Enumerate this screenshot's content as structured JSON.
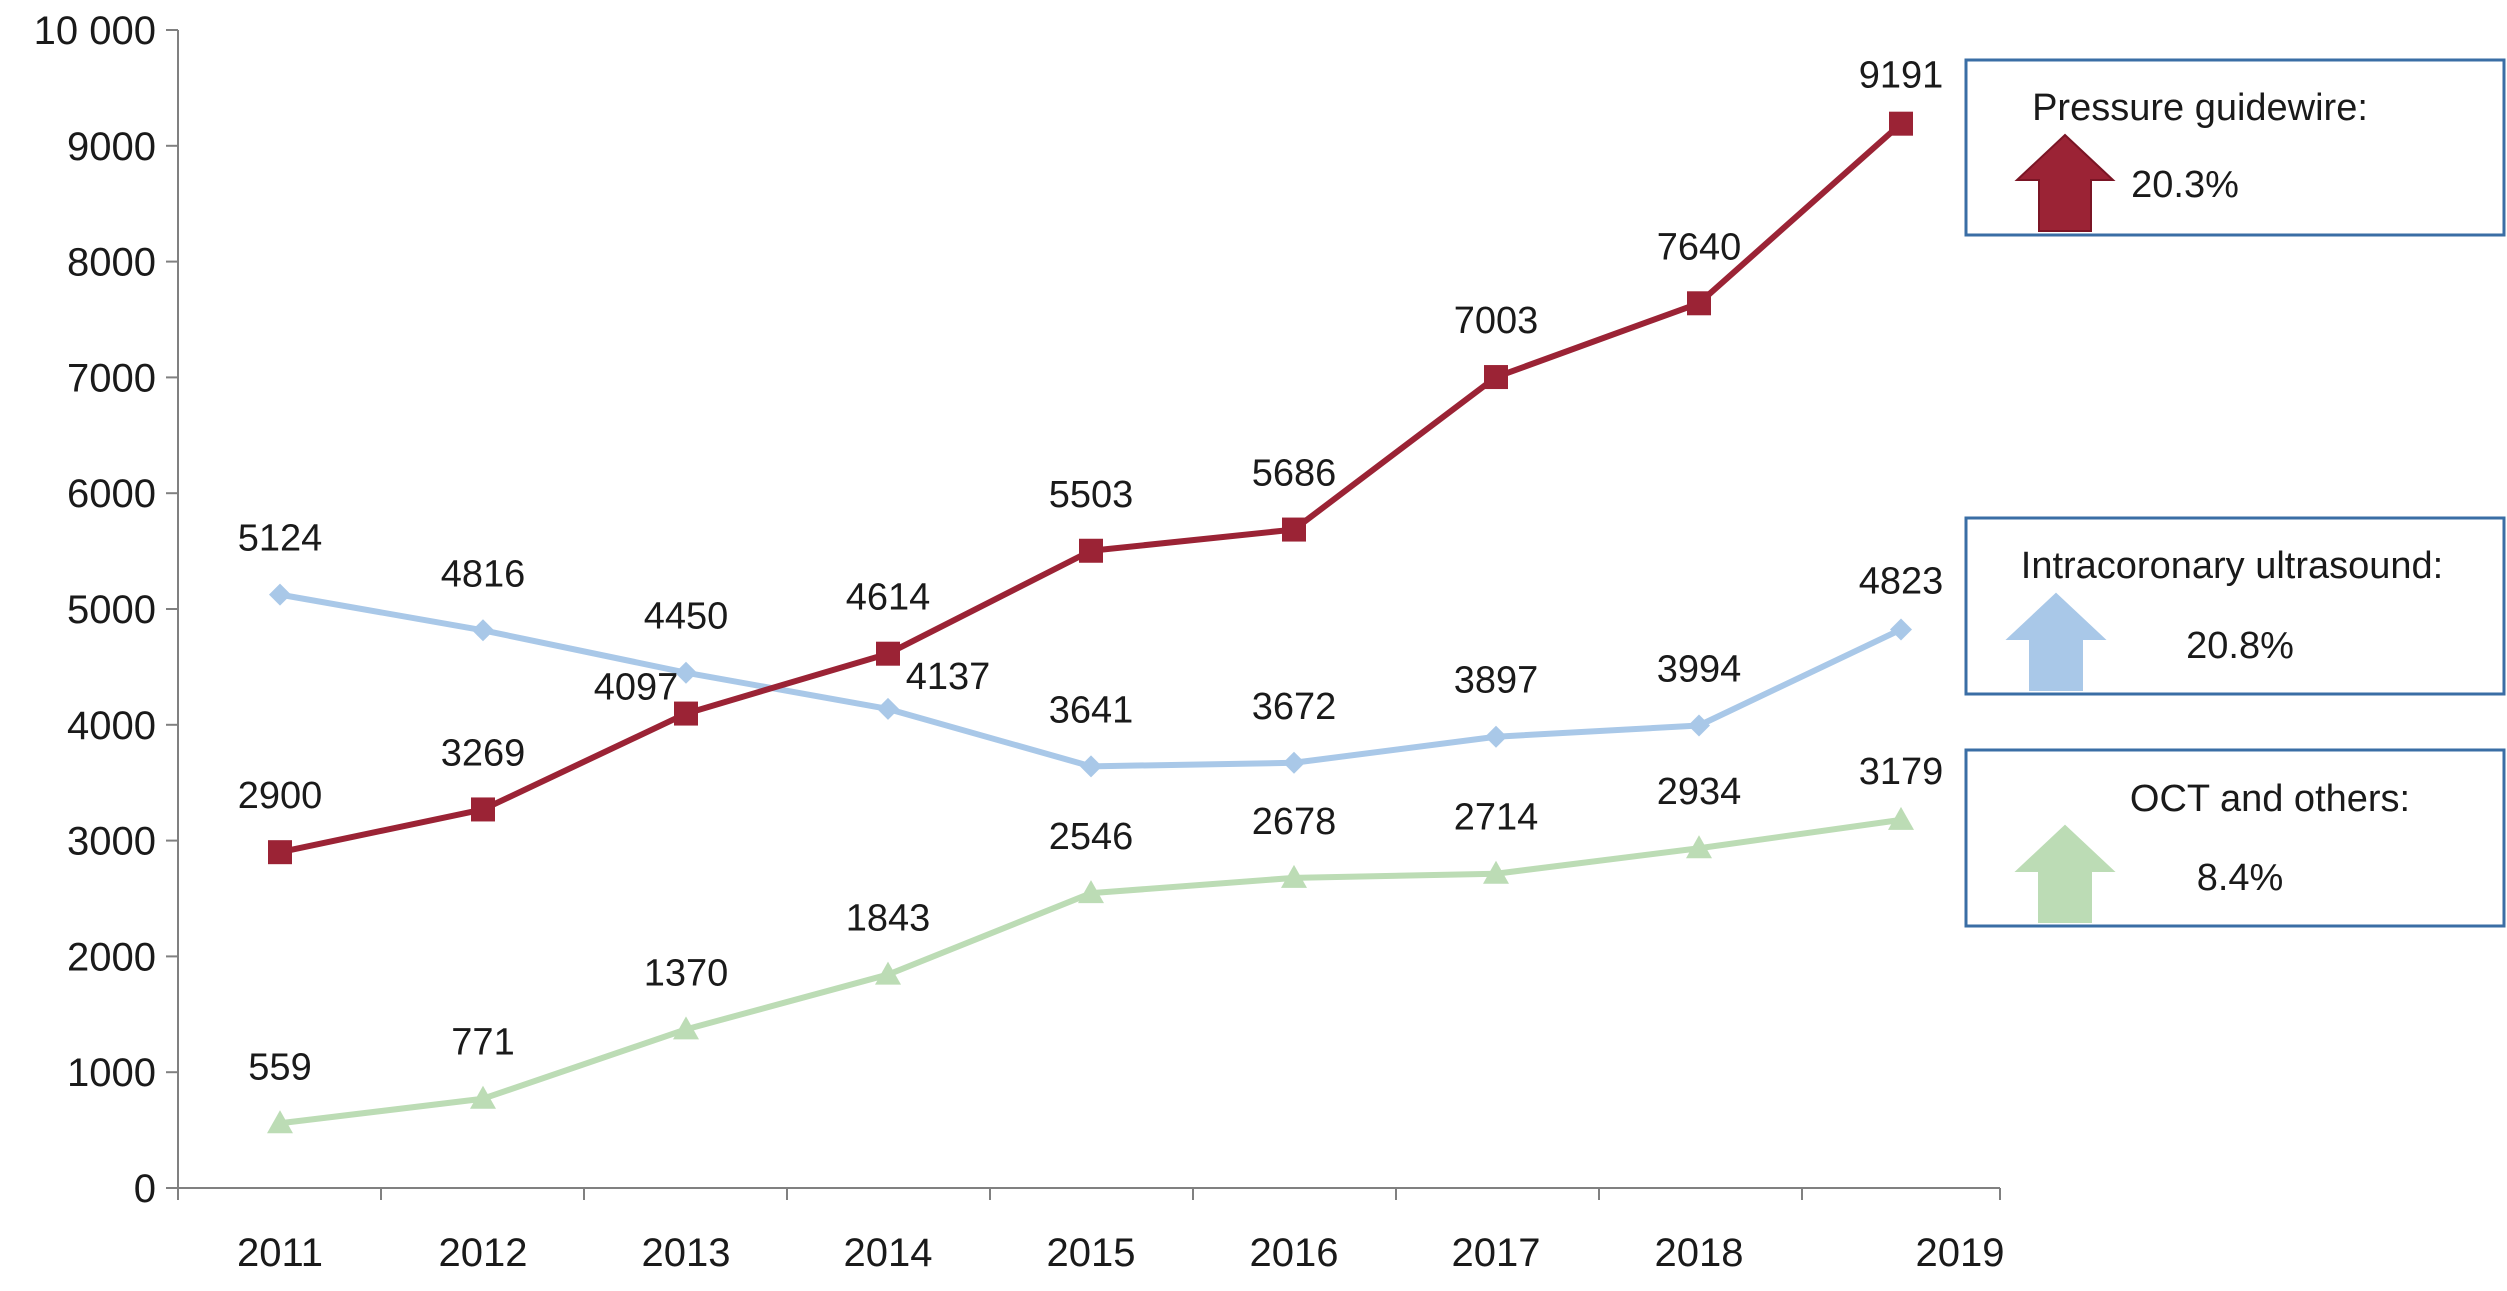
{
  "chart_data": {
    "type": "line",
    "title": "",
    "xlabel": "",
    "ylabel": "",
    "ylim": [
      0,
      10000
    ],
    "y_ticks": [
      {
        "value": 0,
        "label": "0"
      },
      {
        "value": 1000,
        "label": "1000"
      },
      {
        "value": 2000,
        "label": "2000"
      },
      {
        "value": 3000,
        "label": "3000"
      },
      {
        "value": 4000,
        "label": "4000"
      },
      {
        "value": 5000,
        "label": "5000"
      },
      {
        "value": 6000,
        "label": "6000"
      },
      {
        "value": 7000,
        "label": "7000"
      },
      {
        "value": 8000,
        "label": "8000"
      },
      {
        "value": 9000,
        "label": "9000"
      },
      {
        "value": 10000,
        "label": "10 000"
      }
    ],
    "x_tick_labels": [
      "2011",
      "2012",
      "2013",
      "2014",
      "2015",
      "2016",
      "2017",
      "2018",
      "2019"
    ],
    "categories": [
      "2011",
      "2012",
      "2013",
      "2014",
      "2015",
      "2016",
      "2017",
      "2018",
      "2019"
    ],
    "grid": false,
    "series": [
      {
        "key": "ivus",
        "marker": "diamond",
        "color": "#a9c8e8",
        "values": [
          5124,
          4816,
          4450,
          4137,
          3641,
          3672,
          3897,
          3994,
          4823
        ]
      },
      {
        "key": "pressure",
        "marker": "square",
        "color": "#9b2335",
        "values": [
          2900,
          3269,
          4097,
          4614,
          5503,
          5686,
          7003,
          7640,
          9191
        ]
      },
      {
        "key": "oct",
        "marker": "triangle",
        "color": "#bcdcb5",
        "values": [
          559,
          771,
          1370,
          1843,
          2546,
          2678,
          2714,
          2934,
          3179
        ]
      }
    ],
    "legend": {
      "placement": "right",
      "items": [
        {
          "series": "pressure",
          "label": "Pressure guidewire:",
          "growth": "20.3%",
          "arrow_color": "#9b2335"
        },
        {
          "series": "ivus",
          "label": "Intracoronary ultrasound:",
          "growth": "20.8%",
          "arrow_color": "#a9c8e8"
        },
        {
          "series": "oct",
          "label": "OCT and others:",
          "growth": "8.4%",
          "arrow_color": "#bcdcb5"
        }
      ]
    }
  }
}
